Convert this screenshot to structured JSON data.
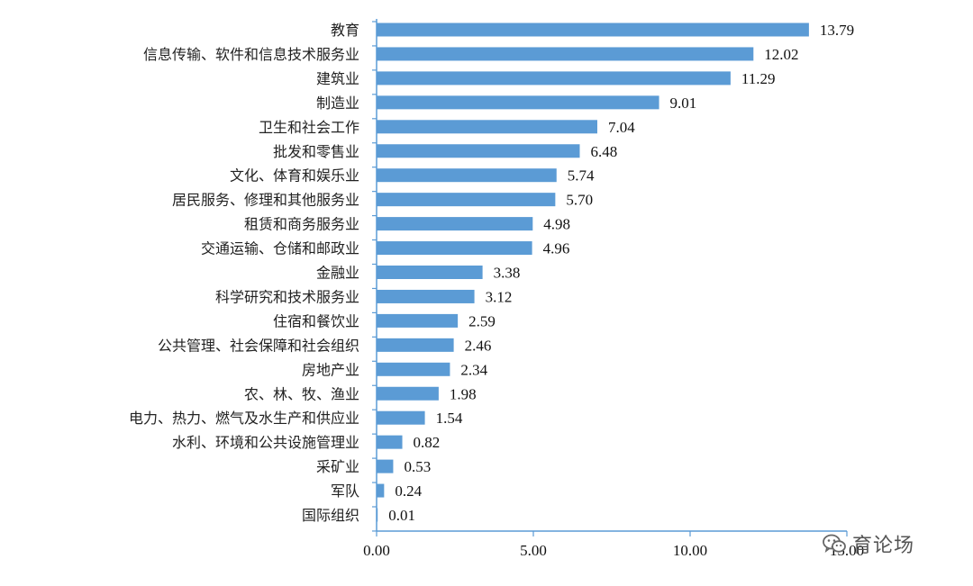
{
  "chart_data": {
    "type": "bar",
    "orientation": "horizontal",
    "categories": [
      "教育",
      "信息传输、软件和信息技术服务业",
      "建筑业",
      "制造业",
      "卫生和社会工作",
      "批发和零售业",
      "文化、体育和娱乐业",
      "居民服务、修理和其他服务业",
      "租赁和商务服务业",
      "交通运输、仓储和邮政业",
      "金融业",
      "科学研究和技术服务业",
      "住宿和餐饮业",
      "公共管理、社会保障和社会组织",
      "房地产业",
      "农、林、牧、渔业",
      "电力、热力、燃气及水生产和供应业",
      "水利、环境和公共设施管理业",
      "采矿业",
      "军队",
      "国际组织"
    ],
    "values": [
      13.79,
      12.02,
      11.29,
      9.01,
      7.04,
      6.48,
      5.74,
      5.7,
      4.98,
      4.96,
      3.38,
      3.12,
      2.59,
      2.46,
      2.34,
      1.98,
      1.54,
      0.82,
      0.53,
      0.24,
      0.01
    ],
    "value_labels": [
      "13.79",
      "12.02",
      "11.29",
      "9.01",
      "7.04",
      "6.48",
      "5.74",
      "5.70",
      "4.98",
      "4.96",
      "3.38",
      "3.12",
      "2.59",
      "2.46",
      "2.34",
      "1.98",
      "1.54",
      "0.82",
      "0.53",
      "0.24",
      "0.01"
    ],
    "xlim": [
      0,
      15
    ],
    "x_ticks": [
      0,
      5,
      10,
      15
    ],
    "x_tick_labels": [
      "0.00",
      "5.00",
      "10.00",
      "15.00"
    ],
    "title": "",
    "xlabel": "",
    "ylabel": "",
    "grid": false,
    "legend": "none",
    "bar_color": "#5b9bd5",
    "axis_color": "#5b9bd5"
  },
  "watermark": {
    "text": "育论场",
    "icon": "wechat-icon"
  }
}
